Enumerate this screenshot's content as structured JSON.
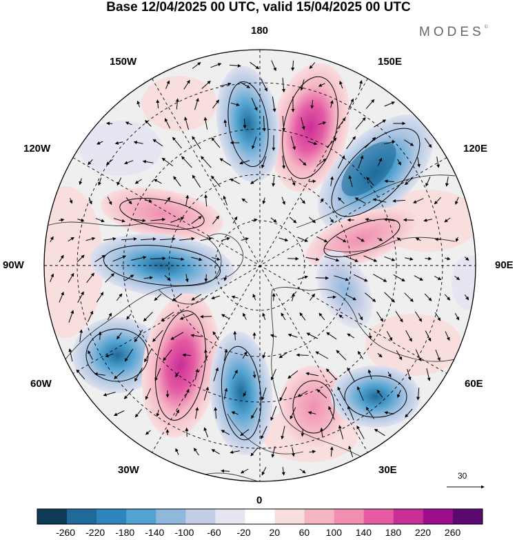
{
  "title": "Base 12/04/2025 00 UTC, valid 15/04/2025 00 UTC",
  "brand": "MODES",
  "brand_mark": "©",
  "lon_labels": {
    "l180": "180",
    "l150e": "150E",
    "l120e": "120E",
    "l90e": "90E",
    "l60e": "60E",
    "l30e": "30E",
    "l0": "0",
    "l30w": "30W",
    "l60w": "60W",
    "l90w": "90W",
    "l120w": "120W",
    "l150w": "150W"
  },
  "reference_vector": {
    "value": "30"
  },
  "colorbar": {
    "ticks": [
      "-260",
      "-220",
      "-180",
      "-140",
      "-100",
      "-60",
      "-20",
      "20",
      "60",
      "100",
      "140",
      "180",
      "220",
      "260"
    ],
    "colors": [
      "#0f3b57",
      "#1f6a99",
      "#2f86bf",
      "#52a3d1",
      "#8fb8dc",
      "#c3cde5",
      "#e6e6f2",
      "#ffffff",
      "#f9dede",
      "#f5b6c4",
      "#f08fb2",
      "#e45aa3",
      "#c92e97",
      "#9d0d8c",
      "#5a0a6e"
    ]
  },
  "colors": {
    "ocean_gray": "#efefef",
    "grid_dash": "#000000"
  }
}
